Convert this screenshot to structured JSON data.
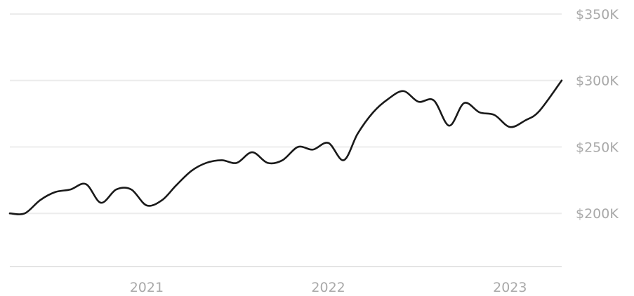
{
  "colors": {
    "line": "#1a1a1a",
    "grid": "#ececec",
    "baseline": "#e4e4e4",
    "tick_text": "#a9a9a9",
    "background": "#ffffff"
  },
  "chart_data": {
    "type": "line",
    "title": "",
    "xlabel": "",
    "ylabel": "",
    "grid": true,
    "y_axis_side": "right",
    "ylim": [
      160000,
      350000
    ],
    "y_ticks": [
      200000,
      250000,
      300000,
      350000
    ],
    "y_tick_labels": [
      "$200K",
      "$250K",
      "$300K",
      "$350K"
    ],
    "xlim": [
      "2020-04-01",
      "2023-04-15"
    ],
    "x_ticks": [
      "2021-01-01",
      "2022-01-01",
      "2023-01-01"
    ],
    "x_tick_labels": [
      "2021",
      "2022",
      "2023"
    ],
    "series": [
      {
        "x": [
          "2020-04-01",
          "2020-05-01",
          "2020-06-01",
          "2020-07-01",
          "2020-08-01",
          "2020-09-01",
          "2020-10-01",
          "2020-11-01",
          "2020-12-01",
          "2021-01-01",
          "2021-02-01",
          "2021-03-01",
          "2021-04-01",
          "2021-05-01",
          "2021-06-01",
          "2021-07-01",
          "2021-08-01",
          "2021-09-01",
          "2021-10-01",
          "2021-11-01",
          "2021-12-01",
          "2022-01-01",
          "2022-02-01",
          "2022-03-01",
          "2022-04-01",
          "2022-05-01",
          "2022-06-01",
          "2022-07-01",
          "2022-08-01",
          "2022-09-01",
          "2022-10-01",
          "2022-11-01",
          "2022-12-01",
          "2023-01-01",
          "2023-02-01",
          "2023-03-01",
          "2023-04-15"
        ],
        "y": [
          200000,
          200000,
          210000,
          216000,
          218000,
          222000,
          208000,
          218000,
          218000,
          206000,
          210000,
          221000,
          232000,
          238000,
          240000,
          238000,
          246000,
          238000,
          240000,
          250000,
          248000,
          253000,
          240000,
          260000,
          276000,
          286000,
          292000,
          284000,
          285000,
          266000,
          283000,
          276000,
          274000,
          265000,
          270000,
          277000,
          300000
        ]
      }
    ]
  }
}
